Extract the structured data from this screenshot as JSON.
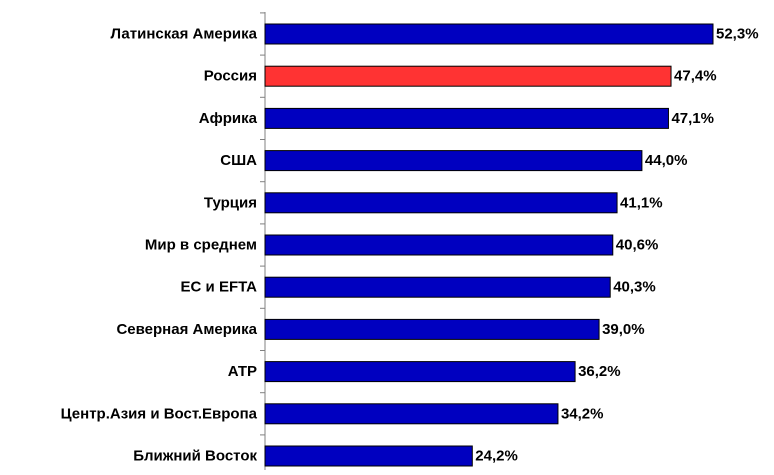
{
  "chart_data": {
    "type": "bar",
    "orientation": "horizontal",
    "categories": [
      "Латинская Америка",
      "Россия",
      "Африка",
      "США",
      "Турция",
      "Мир в среднем",
      "ЕС и EFTA",
      "Северная Америка",
      "АТР",
      "Центр.Азия и Вост.Европа",
      "Ближний Восток"
    ],
    "values": [
      52.3,
      47.4,
      47.1,
      44.0,
      41.1,
      40.6,
      40.3,
      39.0,
      36.2,
      34.2,
      24.2
    ],
    "value_labels": [
      "52,3%",
      "47,4%",
      "47,1%",
      "44,0%",
      "41,1%",
      "40,6%",
      "40,3%",
      "39,0%",
      "36,2%",
      "34,2%",
      "24,2%"
    ],
    "highlight_index": 1,
    "colors": {
      "default": "#0000C0",
      "highlight": "#FF3333"
    },
    "xlim": [
      0,
      52.3
    ],
    "grid": false,
    "title": "",
    "xlabel": "",
    "ylabel": ""
  }
}
